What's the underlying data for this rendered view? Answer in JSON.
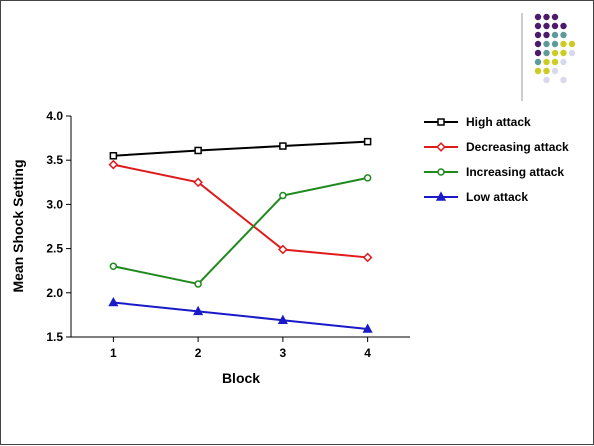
{
  "chart_data": {
    "type": "line",
    "title": "",
    "xlabel": "Block",
    "ylabel": "Mean Shock Setting",
    "x": [
      1,
      2,
      3,
      4
    ],
    "xlim": [
      0.5,
      4.5
    ],
    "ylim": [
      1.5,
      4.0
    ],
    "yticks": [
      1.5,
      2.0,
      2.5,
      3.0,
      3.5,
      4.0
    ],
    "ytick_labels": [
      "1.5",
      "2.0",
      "2.5",
      "3.0",
      "3.5",
      "4.0"
    ],
    "xtick_labels": [
      "1",
      "2",
      "3",
      "4"
    ],
    "grid": false,
    "legend_position": "right",
    "series": [
      {
        "name": "High attack",
        "values": [
          3.55,
          3.61,
          3.66,
          3.71
        ],
        "color": "#000000",
        "marker": "square"
      },
      {
        "name": "Decreasing attack",
        "values": [
          3.45,
          3.25,
          2.49,
          2.4
        ],
        "color": "#e01b1b",
        "marker": "diamond"
      },
      {
        "name": "Increasing attack",
        "values": [
          2.3,
          2.1,
          3.1,
          3.3
        ],
        "color": "#1e8a1e",
        "marker": "circle"
      },
      {
        "name": "Low attack",
        "values": [
          1.89,
          1.79,
          1.69,
          1.59
        ],
        "color": "#1a1ac8",
        "marker": "triangle"
      }
    ]
  },
  "decoration": {
    "dot_colors": {
      "purple": "#4b1a6b",
      "teal": "#5f9a9a",
      "yellow": "#cccc22",
      "lavender": "#d8d8ee"
    },
    "rule_color": "#999999"
  }
}
